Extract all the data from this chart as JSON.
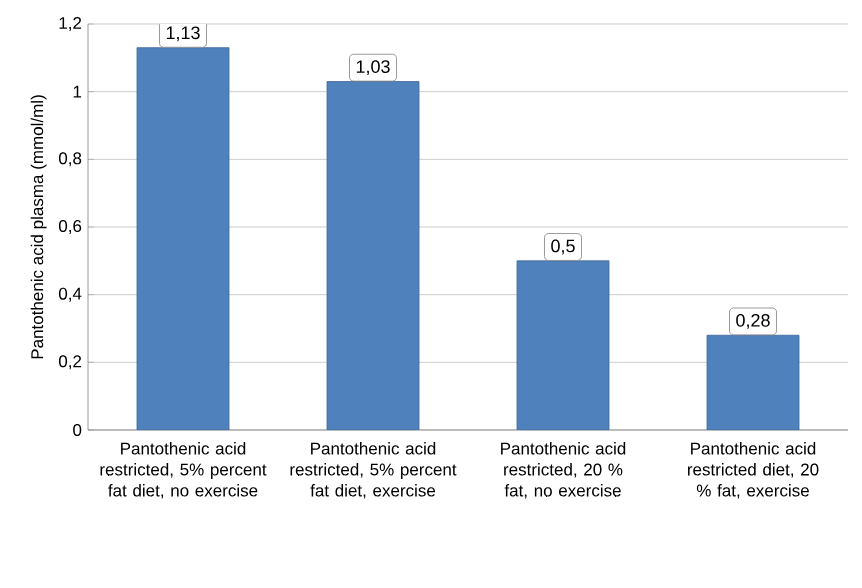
{
  "chart_data": {
    "type": "bar",
    "categories": [
      "Pantothenic acid restricted, 5% percent fat diet, no exercise",
      "Pantothenic acid restricted, 5% percent fat diet, exercise",
      "Pantothenic acid restricted, 20 % fat, no exercise",
      "Pantothenic acid restricted diet, 20 % fat, exercise"
    ],
    "values": [
      1.13,
      1.03,
      0.5,
      0.28
    ],
    "value_labels": [
      "1,13",
      "1,03",
      "0,5",
      "0,28"
    ],
    "color": "#4f81bd",
    "ylabel": "Pantothenic acid plasma (mmol/ml)",
    "ylim": [
      0,
      1.2
    ],
    "yticks": [
      0,
      {
        "value": 0.2,
        "label": "0,2"
      },
      {
        "value": 0.4,
        "label": "0,4"
      },
      {
        "value": 0.6,
        "label": "0,6"
      },
      {
        "value": 0.8,
        "label": "0,8"
      },
      1,
      {
        "value": 1.2,
        "label": "1,2"
      }
    ],
    "grid": "y"
  }
}
